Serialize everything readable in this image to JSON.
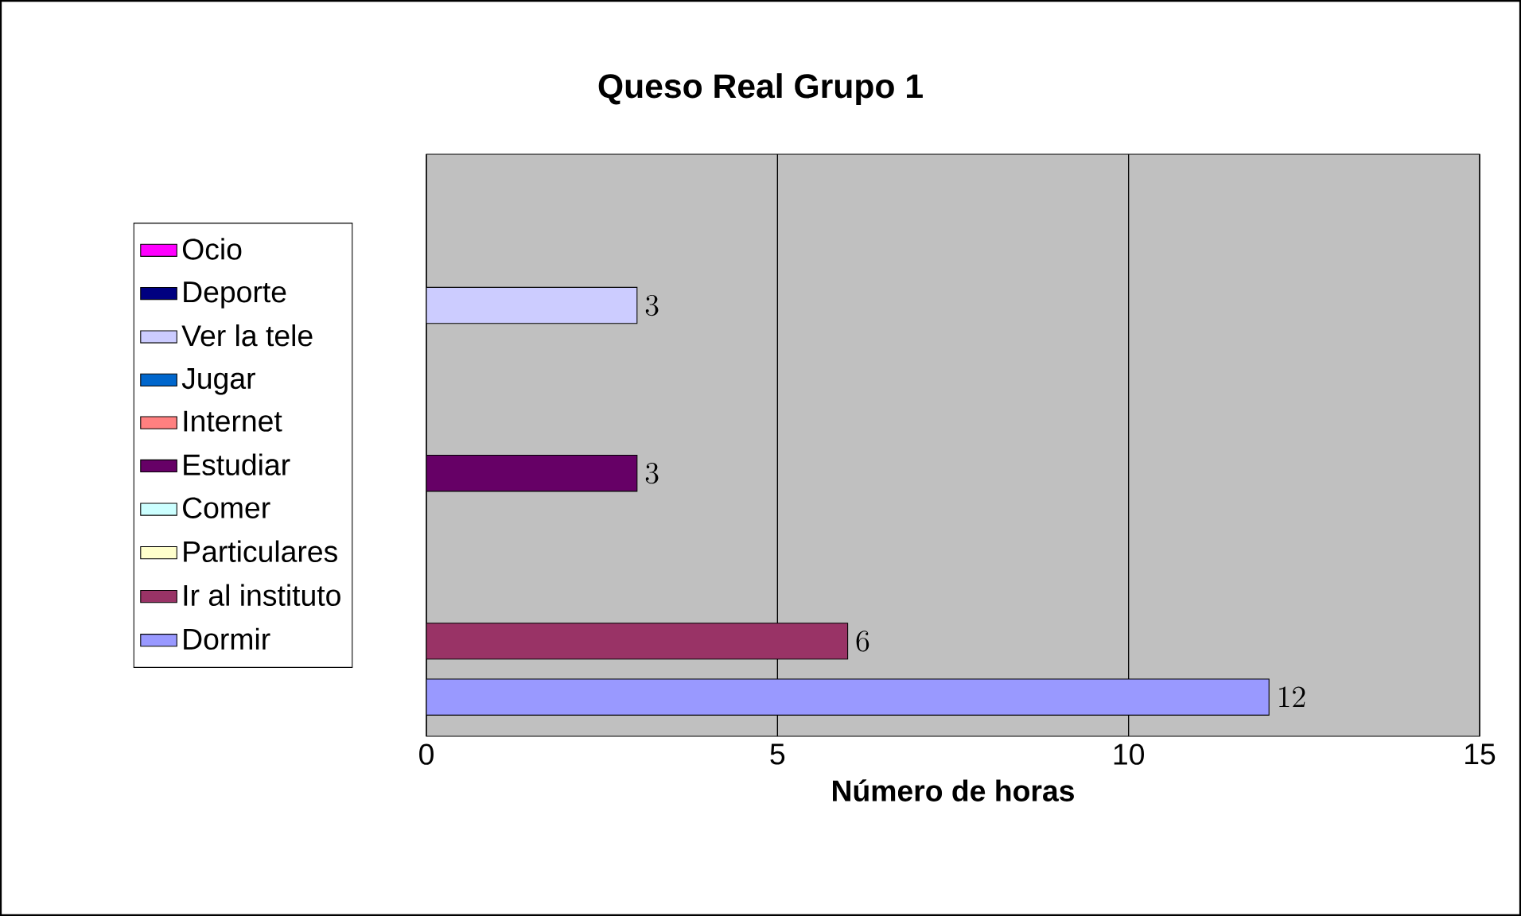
{
  "chart_data": {
    "type": "bar",
    "orientation": "horizontal",
    "title": "Queso Real Grupo 1",
    "xlabel": "Número de horas",
    "categories": [
      null
    ],
    "series": [
      {
        "name": "Dormir",
        "color": "#9999ff",
        "values": [
          12
        ]
      },
      {
        "name": "Ir al instituto",
        "color": "#993366",
        "values": [
          6
        ]
      },
      {
        "name": "Particulares",
        "color": "#ffffcc",
        "values": [
          null
        ]
      },
      {
        "name": "Comer",
        "color": "#ccffff",
        "values": [
          null
        ]
      },
      {
        "name": "Estudiar",
        "color": "#660066",
        "values": [
          3
        ]
      },
      {
        "name": "Internet",
        "color": "#ff8080",
        "values": [
          null
        ]
      },
      {
        "name": "Jugar",
        "color": "#0066cc",
        "values": [
          null
        ]
      },
      {
        "name": "Ver la tele",
        "color": "#ccccff",
        "values": [
          3
        ]
      },
      {
        "name": "Deporte",
        "color": "#000080",
        "values": [
          null
        ]
      },
      {
        "name": "Ocio",
        "color": "#ff00ff",
        "values": [
          null
        ]
      }
    ],
    "xlim": [
      0,
      15
    ],
    "xticks": [
      0,
      5,
      10,
      15
    ],
    "grid": "x",
    "legend": "left",
    "data_labels": true
  }
}
